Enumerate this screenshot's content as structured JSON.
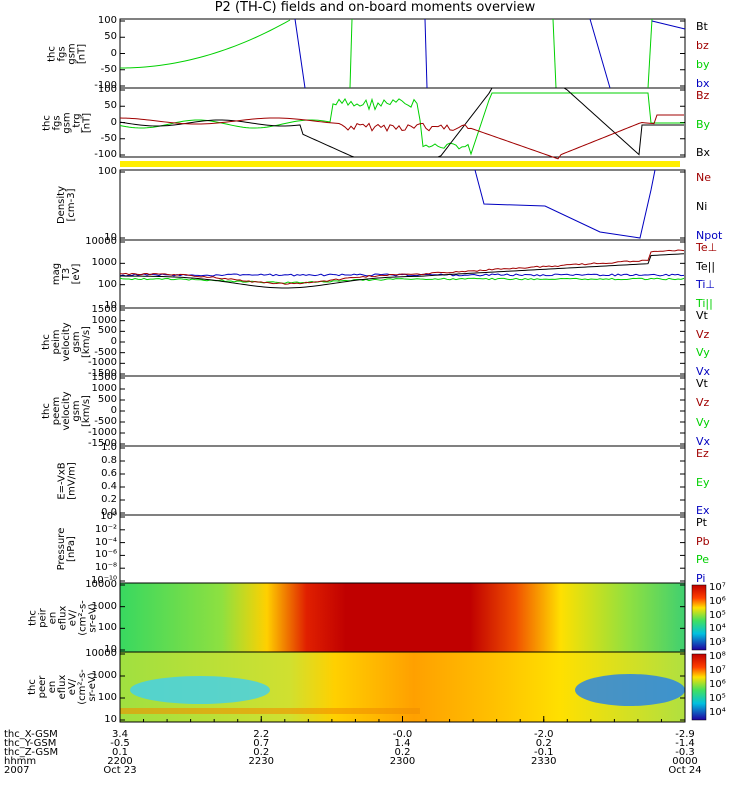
{
  "title": "P2 (TH-C) fields and on-board moments overview",
  "colors": {
    "black": "#000000",
    "red": "#a00000",
    "green": "#00d000",
    "blue": "#0000c0",
    "yellow": "#ffee00"
  },
  "chart_data": {
    "type": "line",
    "panels": [
      {
        "id": "fgs",
        "ylabel": [
          "thc",
          "fgs",
          "gsm",
          "[nT]"
        ],
        "yticks": [
          "100",
          "50",
          "0",
          "-50",
          "-100"
        ],
        "ylim": [
          -100,
          110
        ],
        "legend": [
          {
            "name": "Bt",
            "color": "#000000"
          },
          {
            "name": "bz",
            "color": "#a00000"
          },
          {
            "name": "by",
            "color": "#00d000"
          },
          {
            "name": "bx",
            "color": "#0000c0"
          }
        ]
      },
      {
        "id": "fgs_gsm",
        "ylabel": [
          "thc",
          "fgs",
          "gsm",
          "_trg",
          "[nT]"
        ],
        "yticks": [
          "100",
          "50",
          "0",
          "-50",
          "-100"
        ],
        "ylim": [
          -120,
          100
        ],
        "legend": [
          {
            "name": "Bz",
            "color": "#a00000"
          },
          {
            "name": "By",
            "color": "#00d000"
          },
          {
            "name": "Bx",
            "color": "#000000"
          }
        ]
      },
      {
        "id": "density",
        "ylabel": [
          "Density",
          "[cm-3]"
        ],
        "yticks": [
          "100",
          "10"
        ],
        "legend": [
          {
            "name": "Ne",
            "color": "#a00000"
          },
          {
            "name": "Ni",
            "color": "#000000"
          },
          {
            "name": "Npot",
            "color": "#0000c0"
          }
        ]
      },
      {
        "id": "temperature",
        "ylabel": [
          "mag",
          "T3",
          "[eV]"
        ],
        "yticks": [
          "10000",
          "1000",
          "100",
          "10"
        ],
        "legend": [
          {
            "name": "Te⊥",
            "color": "#a00000"
          },
          {
            "name": "Te||",
            "color": "#000000"
          },
          {
            "name": "Ti⊥",
            "color": "#0000c0"
          },
          {
            "name": "Ti||",
            "color": "#00d000"
          }
        ]
      },
      {
        "id": "peim_vel",
        "ylabel": [
          "thc",
          "peim",
          "velocity",
          "gsm",
          "[km/s]"
        ],
        "yticks": [
          "1500",
          "1000",
          "500",
          "0",
          "-500",
          "-1000",
          "-1500"
        ],
        "legend": [
          {
            "name": "Vt",
            "color": "#000000"
          },
          {
            "name": "Vz",
            "color": "#a00000"
          },
          {
            "name": "Vy",
            "color": "#00d000"
          },
          {
            "name": "Vx",
            "color": "#0000c0"
          }
        ]
      },
      {
        "id": "peem_vel",
        "ylabel": [
          "thc",
          "peem",
          "velocity",
          "gsm",
          "[km/s]"
        ],
        "yticks": [
          "1500",
          "1000",
          "500",
          "0",
          "-500",
          "-1000",
          "-1500"
        ],
        "legend": [
          {
            "name": "Vt",
            "color": "#000000"
          },
          {
            "name": "Vz",
            "color": "#a00000"
          },
          {
            "name": "Vy",
            "color": "#00d000"
          },
          {
            "name": "Vx",
            "color": "#0000c0"
          }
        ]
      },
      {
        "id": "efield",
        "ylabel": [
          "E=-VxB",
          "[mV/m]"
        ],
        "yticks": [
          "1.0",
          "0.8",
          "0.6",
          "0.4",
          "0.2",
          "0.0"
        ],
        "legend": [
          {
            "name": "Ez",
            "color": "#a00000"
          },
          {
            "name": "Ey",
            "color": "#00d000"
          },
          {
            "name": "Ex",
            "color": "#0000c0"
          }
        ]
      },
      {
        "id": "pressure",
        "ylabel": [
          "Pressure",
          "[nPa]"
        ],
        "yticks": [
          "10^0",
          "10^-2",
          "10^-4",
          "10^-6",
          "10^-8",
          "10^-10"
        ],
        "legend": [
          {
            "name": "Pt",
            "color": "#000000"
          },
          {
            "name": "Pb",
            "color": "#a00000"
          },
          {
            "name": "Pe",
            "color": "#00d000"
          },
          {
            "name": "Pi",
            "color": "#0000c0"
          }
        ]
      },
      {
        "id": "peir_flux",
        "ylabel": [
          "thc",
          "peir",
          "en",
          "eflux",
          "eV/",
          "(cm^2-s-",
          "sr-eV)"
        ],
        "yticks": [
          "10000",
          "1000",
          "100",
          "10"
        ],
        "colorbar": [
          "10^7",
          "10^6",
          "10^5",
          "10^4",
          "10^3"
        ]
      },
      {
        "id": "peer_flux",
        "ylabel": [
          "thc",
          "peer",
          "en",
          "eflux",
          "eV/",
          "(cm^2-s-",
          "sr-eV)"
        ],
        "yticks": [
          "10000",
          "1000",
          "100",
          "10"
        ],
        "colorbar": [
          "10^8",
          "10^7",
          "10^6",
          "10^5",
          "10^4"
        ]
      }
    ],
    "x_axis": {
      "row_labels": [
        "thc_X-GSM",
        "thc_Y-GSM",
        "thc_Z-GSM",
        "hhmm",
        "2007"
      ],
      "columns": [
        {
          "values": [
            "3.4",
            "-0.5",
            "0.1",
            "2200",
            "Oct 23"
          ]
        },
        {
          "values": [
            "2.2",
            "0.7",
            "0.2",
            "2230",
            ""
          ]
        },
        {
          "values": [
            "-0.0",
            "1.4",
            "0.2",
            "2300",
            ""
          ]
        },
        {
          "values": [
            "-2.0",
            "0.2",
            "-0.1",
            "2330",
            ""
          ]
        },
        {
          "values": [
            "-2.9",
            "-1.4",
            "-0.3",
            "0000",
            "Oct 24"
          ]
        }
      ]
    }
  }
}
